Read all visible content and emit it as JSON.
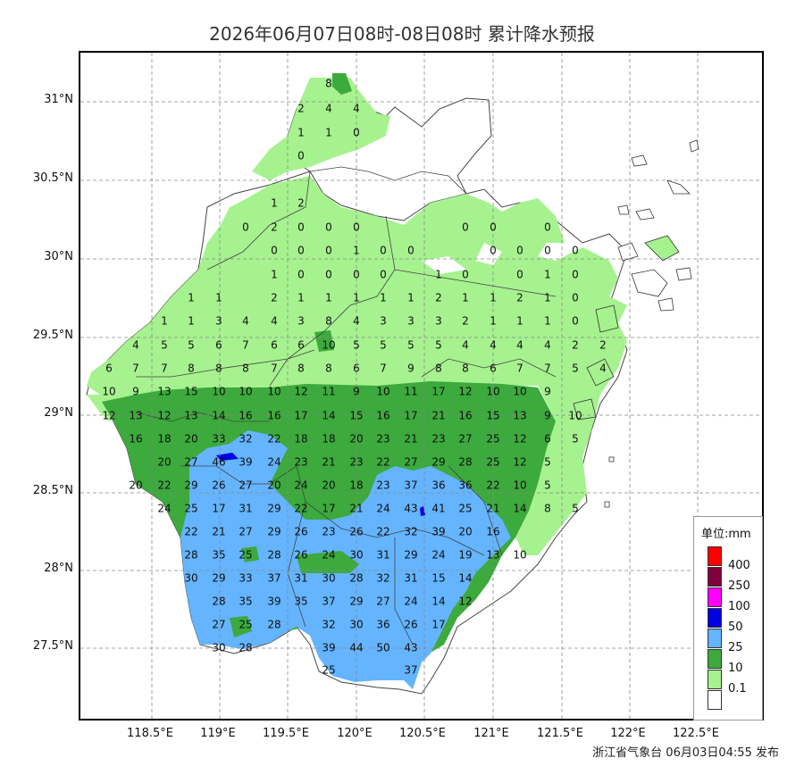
{
  "title": "2026年06月07日08时-08日08时 累计降水预报",
  "footer": "浙江省气象台 06月03日04:55 发布",
  "lat_labels": [
    "31°N",
    "30.5°N",
    "30°N",
    "29.5°N",
    "29°N",
    "28.5°N",
    "28°N",
    "27.5°N"
  ],
  "lon_labels": [
    "118.5°E",
    "119°E",
    "119.5°E",
    "120°E",
    "120.5°E",
    "121°E",
    "121.5°E",
    "122°E",
    "122.5°E"
  ],
  "legend": {
    "title": "单位:mm",
    "items": [
      {
        "label": "400",
        "color": "#ff0000"
      },
      {
        "label": "250",
        "color": "#800040"
      },
      {
        "label": "100",
        "color": "#ff00ff"
      },
      {
        "label": "50",
        "color": "#0000e0"
      },
      {
        "label": "25",
        "color": "#64b4ff"
      },
      {
        "label": "10",
        "color": "#3caa3c"
      },
      {
        "label": "0.1",
        "color": "#a6f28f"
      },
      {
        "label": "",
        "color": "#ffffff"
      }
    ]
  },
  "station_rows": [
    [
      "8"
    ],
    [
      "2",
      "4",
      "4"
    ],
    [
      "1",
      "1",
      "0"
    ],
    [
      "0"
    ],
    [
      "1",
      "2"
    ],
    [
      "0",
      "2",
      "0",
      "0",
      "0",
      "0",
      "0",
      "0"
    ],
    [
      "0",
      "0",
      "0",
      "1",
      "0",
      "0",
      "0",
      "0",
      "0",
      "0"
    ],
    [
      "1",
      "0",
      "0",
      "0",
      "0",
      "1",
      "0",
      "0",
      "1",
      "0"
    ],
    [
      "1",
      "1",
      "2",
      "1",
      "1",
      "1",
      "1",
      "1",
      "2",
      "1",
      "1",
      "2",
      "1",
      "0"
    ],
    [
      "1",
      "1",
      "3",
      "4",
      "4",
      "3",
      "8",
      "4",
      "3",
      "3",
      "3",
      "2",
      "1",
      "1",
      "1",
      "0"
    ],
    [
      "4",
      "5",
      "5",
      "6",
      "7",
      "6",
      "6",
      "10",
      "5",
      "5",
      "5",
      "5",
      "4",
      "4",
      "4",
      "4",
      "2",
      "2"
    ],
    [
      "6",
      "7",
      "7",
      "8",
      "8",
      "8",
      "7",
      "8",
      "8",
      "6",
      "7",
      "9",
      "8",
      "8",
      "6",
      "7",
      "7",
      "5",
      "4"
    ],
    [
      "10",
      "9",
      "13",
      "15",
      "10",
      "10",
      "10",
      "12",
      "11",
      "9",
      "10",
      "11",
      "17",
      "12",
      "10",
      "10",
      "9"
    ],
    [
      "12",
      "13",
      "12",
      "13",
      "14",
      "16",
      "16",
      "17",
      "14",
      "15",
      "16",
      "17",
      "21",
      "16",
      "15",
      "13",
      "9",
      "10"
    ],
    [
      "16",
      "18",
      "20",
      "33",
      "32",
      "22",
      "18",
      "18",
      "20",
      "23",
      "21",
      "23",
      "27",
      "25",
      "12",
      "6",
      "5"
    ],
    [
      "20",
      "27",
      "46",
      "39",
      "24",
      "23",
      "21",
      "23",
      "22",
      "27",
      "29",
      "28",
      "25",
      "12",
      "5"
    ],
    [
      "20",
      "22",
      "29",
      "26",
      "27",
      "20",
      "24",
      "20",
      "18",
      "23",
      "37",
      "36",
      "36",
      "22",
      "10",
      "5"
    ],
    [
      "24",
      "25",
      "17",
      "31",
      "29",
      "22",
      "17",
      "21",
      "24",
      "43",
      "41",
      "25",
      "21",
      "14",
      "8",
      "5"
    ],
    [
      "22",
      "21",
      "27",
      "29",
      "26",
      "23",
      "26",
      "22",
      "32",
      "39",
      "20",
      "16"
    ],
    [
      "28",
      "35",
      "25",
      "28",
      "26",
      "24",
      "30",
      "31",
      "29",
      "24",
      "19",
      "13",
      "10"
    ],
    [
      "30",
      "29",
      "33",
      "37",
      "31",
      "30",
      "28",
      "32",
      "31",
      "15",
      "14"
    ],
    [
      "28",
      "35",
      "39",
      "35",
      "37",
      "29",
      "27",
      "24",
      "14",
      "12"
    ],
    [
      "27",
      "25",
      "28",
      "32",
      "30",
      "36",
      "26",
      "17"
    ],
    [
      "30",
      "28",
      "39",
      "44",
      "50",
      "43"
    ],
    [
      "25",
      "37"
    ]
  ]
}
